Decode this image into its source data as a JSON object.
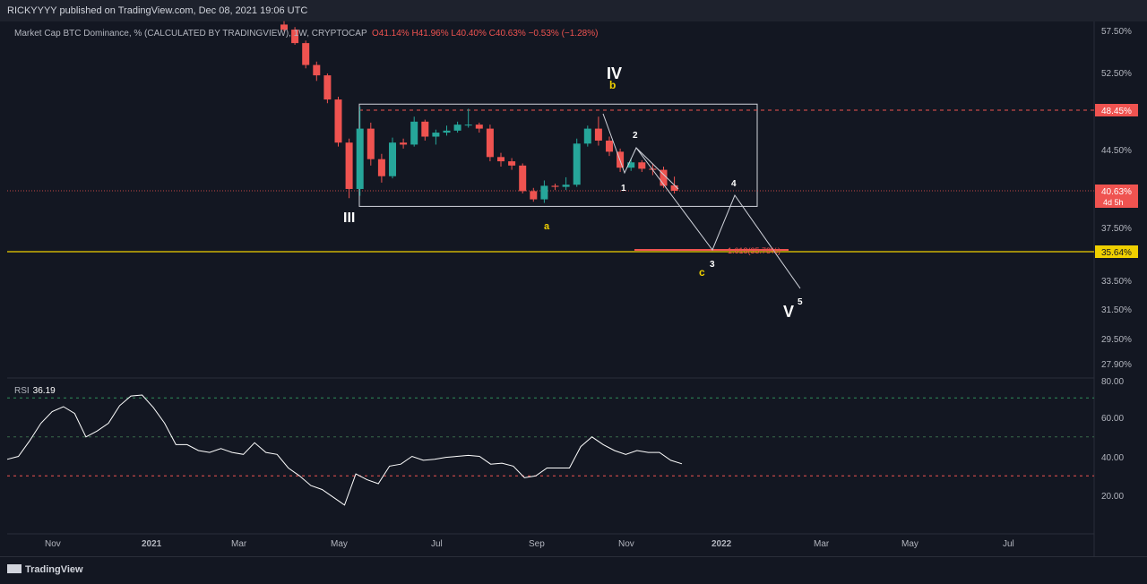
{
  "header": {
    "published_text": "RICKYYYY published on TradingView.com, Dec 08, 2021 19:06 UTC"
  },
  "legend": {
    "symbol": "Market Cap BTC Dominance, % (CALCULATED BY TRADINGVIEW), 1W, CRYPTOCAP",
    "open": "O41.14%",
    "high": "H41.96%",
    "low": "L40.40%",
    "close": "C40.63%",
    "change": "−0.53% (−1.28%)"
  },
  "rsi": {
    "label": "RSI",
    "value": "36.19"
  },
  "footer": {
    "logo_text": "TradingView"
  },
  "colors": {
    "background": "#131722",
    "up": "#26a69a",
    "down": "#ef5350",
    "support": "#f0d000"
  },
  "chart_data": [
    {
      "type": "candlestick",
      "title": "Market Cap BTC Dominance, % (CALCULATED BY TRADINGVIEW), 1W, CRYPTOCAP",
      "interval": "1W",
      "y_ticks": [
        "57.50%",
        "52.50%",
        "48.45%",
        "44.50%",
        "40.63%",
        "37.50%",
        "35.64%",
        "33.50%",
        "31.50%",
        "29.50%",
        "27.90%"
      ],
      "x_ticks": [
        "Nov",
        "2021",
        "Mar",
        "May",
        "Jul",
        "Sep",
        "Nov",
        "2022",
        "Mar",
        "May",
        "Jul"
      ],
      "candles": [
        {
          "o": 58.2,
          "h": 58.6,
          "l": 57.4,
          "c": 57.6
        },
        {
          "o": 57.6,
          "h": 57.9,
          "l": 55.8,
          "c": 56.0
        },
        {
          "o": 56.0,
          "h": 56.3,
          "l": 53.0,
          "c": 53.4
        },
        {
          "o": 53.4,
          "h": 53.8,
          "l": 51.6,
          "c": 52.2
        },
        {
          "o": 52.2,
          "h": 52.4,
          "l": 49.2,
          "c": 49.6
        },
        {
          "o": 49.6,
          "h": 49.9,
          "l": 44.8,
          "c": 45.2
        },
        {
          "o": 45.2,
          "h": 45.6,
          "l": 40.0,
          "c": 40.8
        },
        {
          "o": 40.8,
          "h": 48.8,
          "l": 40.2,
          "c": 46.6
        },
        {
          "o": 46.6,
          "h": 47.2,
          "l": 43.0,
          "c": 43.6
        },
        {
          "o": 43.6,
          "h": 44.1,
          "l": 41.4,
          "c": 42.0
        },
        {
          "o": 42.0,
          "h": 45.7,
          "l": 41.8,
          "c": 45.2
        },
        {
          "o": 45.2,
          "h": 45.6,
          "l": 44.6,
          "c": 45.0
        },
        {
          "o": 45.0,
          "h": 47.8,
          "l": 44.8,
          "c": 47.3
        },
        {
          "o": 47.3,
          "h": 47.5,
          "l": 45.4,
          "c": 45.8
        },
        {
          "o": 45.8,
          "h": 46.5,
          "l": 45.0,
          "c": 46.2
        },
        {
          "o": 46.2,
          "h": 46.9,
          "l": 45.9,
          "c": 46.4
        },
        {
          "o": 46.4,
          "h": 47.3,
          "l": 46.2,
          "c": 47.0
        },
        {
          "o": 47.0,
          "h": 48.6,
          "l": 46.7,
          "c": 47.0
        },
        {
          "o": 47.0,
          "h": 47.2,
          "l": 46.2,
          "c": 46.6
        },
        {
          "o": 46.6,
          "h": 47.0,
          "l": 43.4,
          "c": 43.8
        },
        {
          "o": 43.8,
          "h": 44.2,
          "l": 42.9,
          "c": 43.4
        },
        {
          "o": 43.4,
          "h": 43.7,
          "l": 42.6,
          "c": 43.0
        },
        {
          "o": 43.0,
          "h": 43.2,
          "l": 40.4,
          "c": 40.6
        },
        {
          "o": 40.6,
          "h": 40.9,
          "l": 39.7,
          "c": 39.9
        },
        {
          "o": 39.9,
          "h": 41.6,
          "l": 39.6,
          "c": 41.1
        },
        {
          "o": 41.1,
          "h": 41.3,
          "l": 40.7,
          "c": 41.0
        },
        {
          "o": 41.0,
          "h": 41.9,
          "l": 40.7,
          "c": 41.2
        },
        {
          "o": 41.2,
          "h": 45.6,
          "l": 41.0,
          "c": 45.1
        },
        {
          "o": 45.1,
          "h": 46.9,
          "l": 44.8,
          "c": 46.6
        },
        {
          "o": 46.6,
          "h": 47.8,
          "l": 44.9,
          "c": 45.4
        },
        {
          "o": 45.4,
          "h": 45.8,
          "l": 43.9,
          "c": 44.3
        },
        {
          "o": 44.3,
          "h": 44.6,
          "l": 42.4,
          "c": 42.8
        },
        {
          "o": 42.8,
          "h": 43.7,
          "l": 42.5,
          "c": 43.3
        },
        {
          "o": 43.3,
          "h": 43.5,
          "l": 42.4,
          "c": 42.7
        },
        {
          "o": 42.7,
          "h": 43.2,
          "l": 42.1,
          "c": 42.6
        },
        {
          "o": 42.6,
          "h": 42.9,
          "l": 40.9,
          "c": 41.1
        },
        {
          "o": 41.14,
          "h": 41.96,
          "l": 40.4,
          "c": 40.63
        }
      ],
      "annotations": {
        "box": {
          "top": 49.1,
          "bottom": 39.3
        },
        "wave_labels": [
          "III",
          "IV",
          "b",
          "a",
          "1",
          "2",
          "3",
          "4",
          "c",
          "5",
          "V"
        ],
        "fib_label": "1.618(35.78%)",
        "lines": {
          "resistance": 48.45,
          "last_price": 40.63,
          "support": 35.64
        },
        "last_price_countdown": "4d 5h"
      }
    },
    {
      "type": "line",
      "title": "RSI",
      "y_ticks": [
        "80.00",
        "60.00",
        "40.00",
        "20.00"
      ],
      "levels": [
        70,
        50,
        30
      ],
      "values": [
        38.5,
        40,
        48,
        57,
        63,
        65.5,
        62,
        50,
        53,
        57,
        66,
        71,
        71.5,
        65,
        57,
        46,
        46,
        43,
        42,
        44,
        42,
        41,
        47,
        42,
        41,
        34,
        30,
        25,
        23,
        19,
        15,
        31,
        28,
        26,
        35,
        36,
        40,
        38,
        38.5,
        39.5,
        40,
        40.5,
        40,
        36,
        36.5,
        35,
        29,
        30,
        34,
        34,
        34,
        45,
        50,
        46,
        43,
        41,
        43,
        42,
        42,
        38,
        36.19
      ]
    }
  ]
}
